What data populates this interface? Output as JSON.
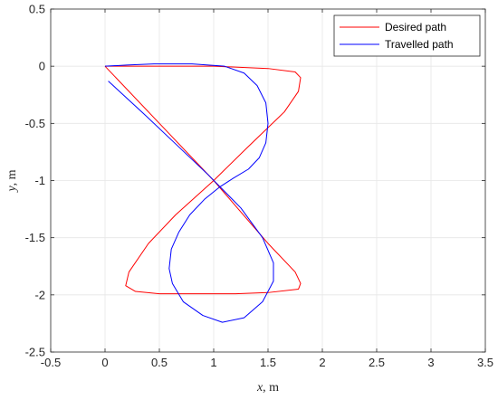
{
  "chart_data": {
    "type": "line",
    "xlabel_var": "x",
    "xlabel_unit": ", m",
    "ylabel_var": "y",
    "ylabel_unit": ", m",
    "xlim": [
      -0.5,
      3.5
    ],
    "ylim": [
      -2.5,
      0.5
    ],
    "x_ticks": [
      -0.5,
      0,
      0.5,
      1,
      1.5,
      2,
      2.5,
      3,
      3.5
    ],
    "x_tick_labels": [
      "-0.5",
      "0",
      "0.5",
      "1",
      "1.5",
      "2",
      "2.5",
      "3",
      "3.5"
    ],
    "y_ticks": [
      -2.5,
      -2,
      -1.5,
      -1,
      -0.5,
      0,
      0.5
    ],
    "y_tick_labels": [
      "-2.5",
      "-2",
      "-1.5",
      "-1",
      "-0.5",
      "0",
      "0.5"
    ],
    "grid": true,
    "legend_position": "top-right",
    "series": [
      {
        "name": "Desired path",
        "color": "#ff0000",
        "x": [
          0.0,
          0.5,
          1.0,
          1.5,
          1.75,
          1.8,
          1.78,
          1.65,
          1.3,
          1.0,
          0.65,
          0.4,
          0.22,
          0.19,
          0.28,
          0.5,
          0.8,
          1.2,
          1.5,
          1.78,
          1.8,
          1.75,
          1.5,
          1.0,
          0.5,
          0.0
        ],
        "y": [
          0.0,
          0.0,
          0.0,
          -0.02,
          -0.05,
          -0.1,
          -0.22,
          -0.4,
          -0.72,
          -1.0,
          -1.3,
          -1.55,
          -1.8,
          -1.92,
          -1.97,
          -1.99,
          -1.99,
          -1.99,
          -1.98,
          -1.95,
          -1.9,
          -1.8,
          -1.55,
          -1.0,
          -0.5,
          0.0
        ]
      },
      {
        "name": "Travelled path",
        "color": "#0000ff",
        "x": [
          0.0,
          0.2,
          0.45,
          0.8,
          1.1,
          1.28,
          1.4,
          1.48,
          1.5,
          1.48,
          1.42,
          1.32,
          1.18,
          1.05,
          0.92,
          0.78,
          0.68,
          0.61,
          0.59,
          0.62,
          0.72,
          0.9,
          1.08,
          1.28,
          1.45,
          1.55,
          1.55,
          1.45,
          1.25,
          0.95,
          0.65,
          0.35,
          0.03
        ],
        "y": [
          0.0,
          0.01,
          0.02,
          0.02,
          0.0,
          -0.06,
          -0.17,
          -0.32,
          -0.5,
          -0.67,
          -0.8,
          -0.9,
          -0.98,
          -1.06,
          -1.16,
          -1.3,
          -1.45,
          -1.6,
          -1.77,
          -1.9,
          -2.06,
          -2.18,
          -2.24,
          -2.2,
          -2.06,
          -1.88,
          -1.72,
          -1.5,
          -1.24,
          -0.95,
          -0.68,
          -0.41,
          -0.13
        ]
      }
    ]
  }
}
